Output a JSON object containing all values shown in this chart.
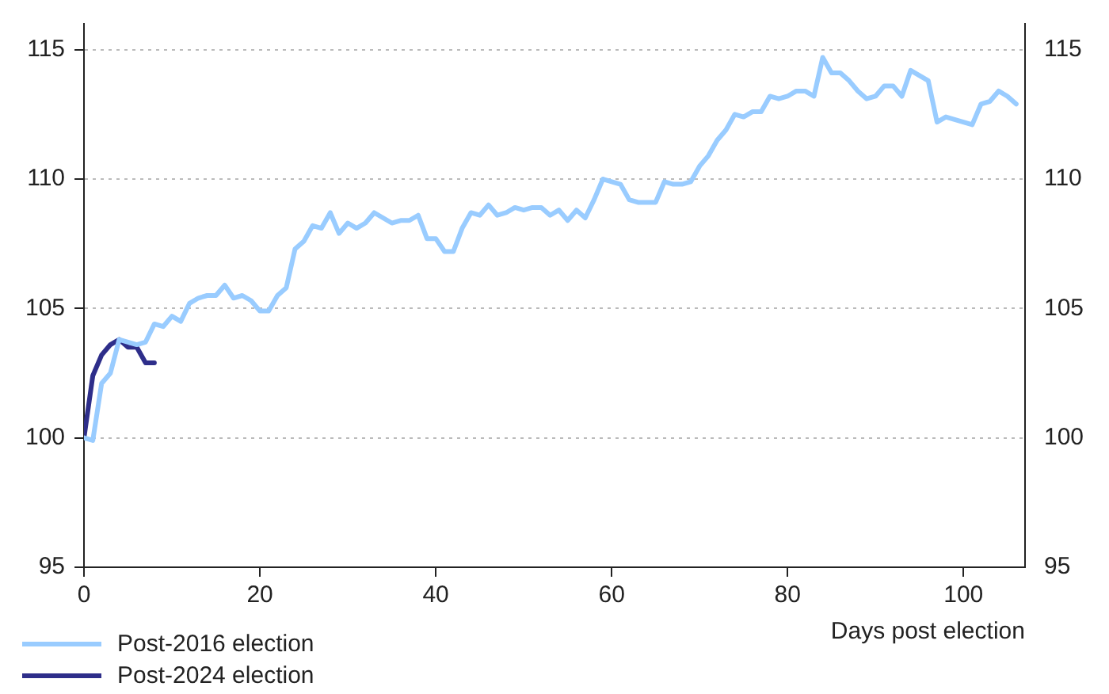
{
  "chart_data": {
    "type": "line",
    "xlabel": "Days post election",
    "series": [
      {
        "name": "Post-2016 election",
        "color": "#99ccff",
        "x": [
          0,
          1,
          2,
          3,
          4,
          5,
          6,
          7,
          8,
          9,
          10,
          11,
          12,
          13,
          14,
          15,
          16,
          17,
          18,
          19,
          20,
          21,
          22,
          23,
          24,
          25,
          26,
          27,
          28,
          29,
          30,
          31,
          32,
          33,
          34,
          35,
          36,
          37,
          38,
          39,
          40,
          41,
          42,
          43,
          44,
          45,
          46,
          47,
          48,
          49,
          50,
          51,
          52,
          53,
          54,
          55,
          56,
          57,
          58,
          59,
          60,
          61,
          62,
          63,
          64,
          65,
          66,
          67,
          68,
          69,
          70,
          71,
          72,
          73,
          74,
          75,
          76,
          77,
          78,
          79,
          80,
          81,
          82,
          83,
          84,
          85,
          86,
          87,
          88,
          89,
          90,
          91,
          92,
          93,
          94,
          95,
          96,
          97,
          98,
          99,
          100,
          101,
          102,
          103,
          104,
          105,
          106
        ],
        "values": [
          100,
          99.9,
          102.1,
          102.5,
          103.8,
          103.7,
          103.6,
          103.7,
          104.4,
          104.3,
          104.7,
          104.5,
          105.2,
          105.4,
          105.5,
          105.5,
          105.9,
          105.4,
          105.5,
          105.3,
          104.9,
          104.9,
          105.5,
          105.8,
          107.3,
          107.6,
          108.2,
          108.1,
          108.7,
          107.9,
          108.3,
          108.1,
          108.3,
          108.7,
          108.5,
          108.3,
          108.4,
          108.4,
          108.6,
          107.7,
          107.7,
          107.2,
          107.2,
          108.1,
          108.7,
          108.6,
          109,
          108.6,
          108.7,
          108.9,
          108.8,
          108.9,
          108.9,
          108.6,
          108.8,
          108.4,
          108.8,
          108.5,
          109.2,
          110,
          109.9,
          109.8,
          109.2,
          109.1,
          109.1,
          109.1,
          109.9,
          109.8,
          109.8,
          109.9,
          110.5,
          110.9,
          111.5,
          111.9,
          112.5,
          112.4,
          112.6,
          112.6,
          113.2,
          113.1,
          113.2,
          113.4,
          113.4,
          113.2,
          114.7,
          114.1,
          114.1,
          113.8,
          113.4,
          113.1,
          113.2,
          113.6,
          113.6,
          113.2,
          114.2,
          114,
          113.8,
          112.2,
          112.4,
          112.3,
          112.2,
          112.1,
          112.9,
          113,
          113.4,
          113.2,
          112.9
        ]
      },
      {
        "name": "Post-2024 election",
        "color": "#2e2e8a",
        "x": [
          0,
          1,
          2,
          3,
          4,
          5,
          6,
          7,
          8
        ],
        "values": [
          100,
          102.4,
          103.2,
          103.6,
          103.8,
          103.5,
          103.5,
          102.9,
          102.9
        ]
      }
    ],
    "xlim": [
      0,
      107
    ],
    "xticks": [
      0,
      20,
      40,
      60,
      80,
      100
    ],
    "ylim": [
      95,
      116
    ],
    "yticks": [
      95,
      100,
      105,
      110,
      115
    ],
    "y2lim": [
      95,
      116
    ],
    "y2ticks": [
      95,
      100,
      105,
      110,
      115
    ],
    "grid": "y",
    "legend": "bottom left",
    "marker": "none",
    "line_style": "solid"
  }
}
